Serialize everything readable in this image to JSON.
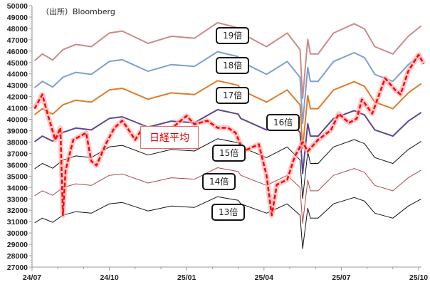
{
  "chart_data": {
    "type": "line",
    "source": "（出所）Bloomberg",
    "x_tick_labels": [
      "24/07",
      "24/10",
      "25/01",
      "25/04",
      "25/07",
      "25/10"
    ],
    "x_unit": "months since 24/07",
    "ylim": [
      27000,
      50000
    ],
    "y_step": 1000,
    "eps": {
      "m": [
        0.1,
        0.4,
        0.8,
        1.2,
        1.7,
        2.3,
        3.0,
        3.5,
        4.5,
        5.4,
        6.3,
        7.2,
        8.0,
        8.1,
        9.1,
        9.9,
        10.4,
        10.5,
        10.7,
        10.8,
        11.1,
        11.7,
        12.5,
        12.9,
        13.3,
        14.0,
        14.6,
        15.1
      ],
      "values": [
        2377,
        2408,
        2380,
        2428,
        2452,
        2442,
        2505,
        2514,
        2457,
        2490,
        2481,
        2553,
        2529,
        2505,
        2442,
        2505,
        2428,
        2202,
        2476,
        2408,
        2408,
        2505,
        2548,
        2524,
        2442,
        2408,
        2490,
        2538
      ]
    },
    "series": [
      {
        "name": "19倍",
        "multiple": 19,
        "color": "#cc8a88",
        "width": 2
      },
      {
        "name": "18倍",
        "multiple": 18,
        "color": "#7f9fd0",
        "width": 2
      },
      {
        "name": "17倍",
        "multiple": 17,
        "color": "#e07b2a",
        "width": 2
      },
      {
        "name": "16倍",
        "multiple": 16,
        "color": "#5f468f",
        "width": 2
      },
      {
        "name": "15倍",
        "multiple": 15,
        "color": "#111111",
        "width": 1
      },
      {
        "name": "14倍",
        "multiple": 14,
        "color": "#b04848",
        "width": 1
      },
      {
        "name": "13倍",
        "multiple": 13,
        "color": "#111111",
        "width": 1
      }
    ],
    "nikkei": {
      "name": "日経平均",
      "color": "#ff0000",
      "m": [
        0.1,
        0.4,
        0.6,
        0.9,
        1.1,
        1.2,
        1.3,
        1.6,
        1.8,
        2.1,
        2.3,
        2.5,
        2.9,
        3.2,
        3.5,
        3.7,
        4.0,
        4.3,
        4.6,
        4.9,
        5.3,
        5.6,
        6.0,
        6.3,
        6.8,
        7.2,
        7.6,
        7.9,
        8.2,
        8.8,
        9.1,
        9.3,
        9.5,
        9.9,
        10.2,
        10.5,
        10.7,
        11.1,
        11.6,
        11.9,
        12.3,
        12.6,
        12.8,
        13.2,
        13.7,
        14.1,
        14.3,
        14.6,
        15.0,
        15.2
      ],
      "values": [
        40940,
        42190,
        40500,
        38190,
        39250,
        31560,
        35500,
        38190,
        38440,
        38810,
        36310,
        35940,
        38000,
        39250,
        39880,
        39250,
        38190,
        39250,
        38900,
        39250,
        38900,
        39560,
        40310,
        39560,
        39880,
        39250,
        39250,
        38810,
        37190,
        37810,
        35060,
        31560,
        34250,
        34690,
        36750,
        38000,
        37190,
        38190,
        39060,
        40500,
        39690,
        40060,
        41750,
        40500,
        43620,
        42560,
        42190,
        44250,
        45690,
        44880
      ]
    }
  }
}
